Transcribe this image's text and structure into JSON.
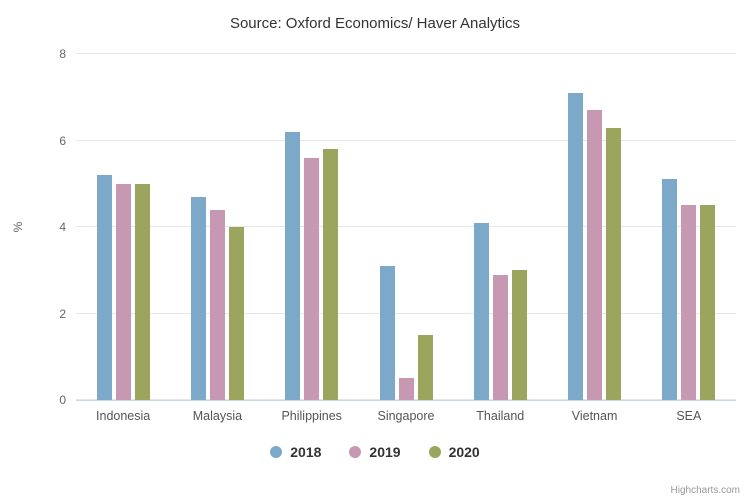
{
  "title": "Source: Oxford Economics/ Haver Analytics",
  "credit": "Highcharts.com",
  "colors": {
    "grid": "#e6e6e6",
    "axis_line": "#ccd6eb",
    "tick_label": "#666666",
    "title_text": "#333333"
  },
  "chart_data": {
    "type": "bar",
    "title": "Source: Oxford Economics/ Haver Analytics",
    "categories": [
      "Indonesia",
      "Malaysia",
      "Philippines",
      "Singapore",
      "Thailand",
      "Vietnam",
      "SEA"
    ],
    "series": [
      {
        "name": "2018",
        "color": "#7CA8CA",
        "values": [
          5.2,
          4.7,
          6.2,
          3.1,
          4.1,
          7.1,
          5.1
        ]
      },
      {
        "name": "2019",
        "color": "#C698B1",
        "values": [
          5.0,
          4.4,
          5.6,
          0.5,
          2.9,
          6.7,
          4.5
        ]
      },
      {
        "name": "2020",
        "color": "#9BA55E",
        "values": [
          5.0,
          4.0,
          5.8,
          1.5,
          3.0,
          6.3,
          4.5
        ]
      }
    ],
    "xlabel": "",
    "ylabel": "%",
    "ylim": [
      0,
      8
    ],
    "yticks": [
      0,
      2,
      4,
      6,
      8
    ],
    "grid": true,
    "legend_position": "bottom"
  }
}
